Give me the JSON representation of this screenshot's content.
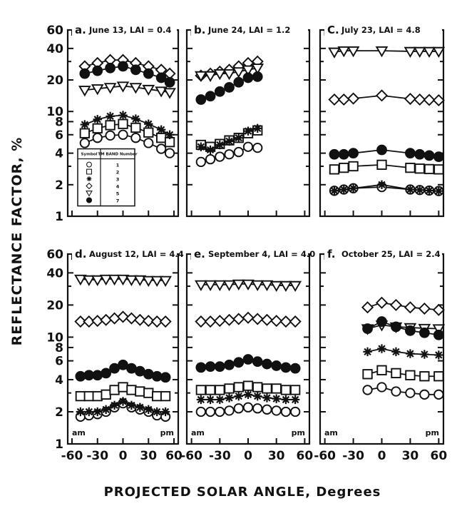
{
  "figure": {
    "ylabel": "REFLECTANCE FACTOR, %",
    "xlabel": "PROJECTED SOLAR ANGLE, Degrees"
  },
  "chart_data": {
    "type": "line",
    "yscale": "log",
    "ylim": [
      1,
      60
    ],
    "yticks": [
      1,
      2,
      4,
      6,
      8,
      10,
      20,
      40,
      60
    ],
    "ytick_labels": [
      "1",
      "2",
      "4",
      "6",
      "8",
      "10",
      "20",
      "40",
      "60"
    ],
    "xlim": [
      -65,
      65
    ],
    "xticks": [
      -60,
      -30,
      0,
      30,
      60
    ],
    "xtick_labels": [
      "-60",
      "-30",
      "0",
      "30",
      "60"
    ],
    "legend": {
      "header": [
        "Symbol",
        "TM BAND Number"
      ],
      "entries": [
        {
          "marker": "circle-open",
          "band": "1"
        },
        {
          "marker": "square-open",
          "band": "2"
        },
        {
          "marker": "star",
          "band": "3"
        },
        {
          "marker": "diamond-open",
          "band": "4"
        },
        {
          "marker": "triangle-down-open",
          "band": "5"
        },
        {
          "marker": "circle-filled",
          "band": "7"
        }
      ],
      "placement": "lower-left of panel a"
    },
    "panels": [
      {
        "id": "a",
        "letter": "a.",
        "title": "June 13, LAI = 0.4",
        "x": [
          -45,
          -30,
          -15,
          0,
          15,
          30,
          45,
          55
        ],
        "series": [
          {
            "band": "1",
            "marker": "circle-open",
            "values": [
              5.0,
              5.6,
              5.9,
              6.0,
              5.6,
              5.0,
              4.4,
              4.0
            ]
          },
          {
            "band": "2",
            "marker": "square-open",
            "values": [
              6.2,
              6.9,
              7.4,
              7.6,
              7.0,
              6.3,
              5.6,
              5.1
            ]
          },
          {
            "band": "3",
            "marker": "star",
            "values": [
              7.5,
              8.4,
              9.0,
              9.2,
              8.5,
              7.6,
              6.7,
              6.0
            ]
          },
          {
            "band": "4",
            "marker": "diamond-open",
            "values": [
              27,
              29,
              31,
              31,
              29,
              27,
              25,
              23
            ]
          },
          {
            "band": "5",
            "marker": "triangle-down-open",
            "values": [
              16,
              16.5,
              17,
              17.5,
              17,
              16.3,
              15.7,
              15.2
            ]
          },
          {
            "band": "7",
            "marker": "circle-filled",
            "values": [
              23,
              24.5,
              26,
              27,
              25,
              23,
              21,
              19
            ]
          }
        ]
      },
      {
        "id": "b",
        "letter": "b.",
        "title": "June 24, LAI = 1.2",
        "x": [
          -50,
          -40,
          -30,
          -20,
          -10,
          0,
          10
        ],
        "series": [
          {
            "band": "1",
            "marker": "circle-open",
            "values": [
              3.3,
              3.5,
              3.7,
              3.9,
              4.1,
              4.6,
              4.5
            ]
          },
          {
            "band": "2",
            "marker": "square-open",
            "values": [
              4.8,
              4.6,
              4.9,
              5.3,
              5.6,
              6.2,
              6.6
            ]
          },
          {
            "band": "3",
            "marker": "star",
            "values": [
              4.6,
              4.3,
              4.8,
              5.2,
              5.6,
              6.5,
              6.9
            ]
          },
          {
            "band": "4",
            "marker": "diamond-open",
            "values": [
              22,
              23,
              24,
              25,
              27,
              29,
              30
            ]
          },
          {
            "band": "5",
            "marker": "triangle-down-open",
            "values": [
              22,
              22,
              23,
              23,
              24,
              25,
              26
            ]
          },
          {
            "band": "7",
            "marker": "circle-filled",
            "values": [
              13,
              14,
              15.5,
              17,
              19,
              21,
              21.5
            ]
          }
        ]
      },
      {
        "id": "c",
        "letter": "C.",
        "title": "July 23, LAI = 4.8",
        "x": [
          -50,
          -40,
          -30,
          0,
          30,
          40,
          50,
          60
        ],
        "series": [
          {
            "band": "1",
            "marker": "circle-open",
            "values": [
              1.75,
              1.8,
              1.85,
              1.9,
              1.8,
              1.78,
              1.76,
              1.74
            ]
          },
          {
            "band": "2",
            "marker": "square-open",
            "values": [
              2.8,
              2.9,
              3.0,
              3.1,
              2.9,
              2.85,
              2.82,
              2.8
            ]
          },
          {
            "band": "3",
            "marker": "star",
            "values": [
              1.75,
              1.8,
              1.85,
              2.0,
              1.8,
              1.78,
              1.76,
              1.74
            ]
          },
          {
            "band": "4",
            "marker": "diamond-open",
            "values": [
              13,
              13,
              13.3,
              14.2,
              13.2,
              13.0,
              12.9,
              12.8
            ]
          },
          {
            "band": "5",
            "marker": "triangle-down-open",
            "values": [
              37,
              38,
              38,
              38,
              37.5,
              37.5,
              37.5,
              37.5
            ]
          },
          {
            "band": "7",
            "marker": "circle-filled",
            "values": [
              3.9,
              3.9,
              4.0,
              4.3,
              4.0,
              3.9,
              3.8,
              3.7
            ]
          }
        ]
      },
      {
        "id": "d",
        "letter": "d.",
        "title": "August 12, LAI = 4.4",
        "x": [
          -50,
          -40,
          -30,
          -20,
          -10,
          0,
          10,
          20,
          30,
          40,
          50
        ],
        "series": [
          {
            "band": "1",
            "marker": "circle-open",
            "values": [
              1.8,
              1.85,
              1.9,
              2.0,
              2.2,
              2.4,
              2.2,
              2.1,
              2.0,
              1.85,
              1.8
            ]
          },
          {
            "band": "2",
            "marker": "square-open",
            "values": [
              2.8,
              2.8,
              2.8,
              2.9,
              3.2,
              3.4,
              3.2,
              3.1,
              3.0,
              2.8,
              2.8
            ]
          },
          {
            "band": "3",
            "marker": "star",
            "values": [
              2.0,
              2.0,
              2.0,
              2.1,
              2.3,
              2.5,
              2.3,
              2.2,
              2.1,
              2.0,
              2.0
            ]
          },
          {
            "band": "4",
            "marker": "diamond-open",
            "values": [
              14,
              14,
              14.2,
              14.5,
              15,
              15.5,
              15,
              14.5,
              14.2,
              14,
              14
            ]
          },
          {
            "band": "5",
            "marker": "triangle-down-open",
            "values": [
              35,
              34.5,
              34.5,
              35,
              35,
              35,
              34.5,
              34.5,
              34,
              34,
              34
            ]
          },
          {
            "band": "7",
            "marker": "circle-filled",
            "values": [
              4.3,
              4.4,
              4.4,
              4.6,
              5.1,
              5.5,
              5.1,
              4.8,
              4.5,
              4.3,
              4.2
            ]
          }
        ]
      },
      {
        "id": "e",
        "letter": "e.",
        "title": "September 4, LAI = 4.0",
        "x": [
          -50,
          -40,
          -30,
          -20,
          -10,
          0,
          10,
          20,
          30,
          40,
          50
        ],
        "series": [
          {
            "band": "1",
            "marker": "circle-open",
            "values": [
              2.0,
              2.0,
              2.0,
              2.05,
              2.15,
              2.2,
              2.15,
              2.1,
              2.05,
              2.0,
              2.0
            ]
          },
          {
            "band": "2",
            "marker": "square-open",
            "values": [
              3.2,
              3.2,
              3.2,
              3.3,
              3.4,
              3.5,
              3.4,
              3.3,
              3.3,
              3.2,
              3.2
            ]
          },
          {
            "band": "3",
            "marker": "star",
            "values": [
              2.6,
              2.6,
              2.6,
              2.7,
              2.8,
              2.9,
              2.8,
              2.7,
              2.65,
              2.6,
              2.6
            ]
          },
          {
            "band": "4",
            "marker": "diamond-open",
            "values": [
              14,
              14,
              14.2,
              14.5,
              14.8,
              15.2,
              14.8,
              14.5,
              14.2,
              14,
              14
            ]
          },
          {
            "band": "5",
            "marker": "triangle-down-open",
            "values": [
              31,
              31,
              31,
              31,
              31.5,
              31.5,
              31,
              31,
              30.5,
              30.5,
              30.5
            ]
          },
          {
            "band": "7",
            "marker": "circle-filled",
            "values": [
              5.2,
              5.3,
              5.3,
              5.5,
              5.8,
              6.2,
              5.9,
              5.6,
              5.4,
              5.2,
              5.1
            ]
          }
        ]
      },
      {
        "id": "f",
        "letter": "f.",
        "title": "October 25, LAI = 2.4",
        "x": [
          -15,
          0,
          15,
          30,
          45,
          60
        ],
        "series": [
          {
            "band": "1",
            "marker": "circle-open",
            "values": [
              3.2,
              3.4,
              3.1,
              3.0,
              2.9,
              2.9
            ]
          },
          {
            "band": "2",
            "marker": "square-open",
            "values": [
              4.5,
              4.9,
              4.6,
              4.4,
              4.3,
              4.3
            ]
          },
          {
            "band": "3",
            "marker": "star",
            "values": [
              7.3,
              7.8,
              7.3,
              7.0,
              6.9,
              6.8
            ]
          },
          {
            "band": "4",
            "marker": "diamond-open",
            "values": [
              19,
              21,
              20,
              19,
              18.5,
              18
            ]
          },
          {
            "band": "5",
            "marker": "triangle-down-open",
            "values": [
              12,
              13,
              12.5,
              12.3,
              12.1,
              12
            ]
          },
          {
            "band": "7",
            "marker": "circle-filled",
            "values": [
              12,
              14,
              12.5,
              11.5,
              11,
              10.5
            ]
          }
        ]
      }
    ],
    "annotations": {
      "am": "am",
      "pm": "pm"
    }
  }
}
